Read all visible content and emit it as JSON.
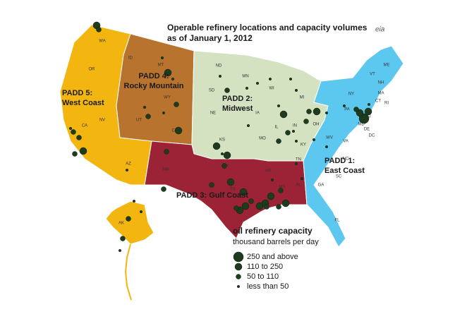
{
  "header": {
    "title": [
      "Operable refinery locations and capacity volumes",
      "as of January 1, 2012"
    ],
    "logo": "eia"
  },
  "regions": [
    {
      "label": [
        "PADD 5:",
        "West Coast"
      ]
    },
    {
      "label": [
        "PADD 4:",
        "Rocky Mountain"
      ]
    },
    {
      "label": [
        "PADD 2:",
        "Midwest"
      ]
    },
    {
      "label": [
        "PADD 3: Gulf Coast"
      ]
    },
    {
      "label": [
        "PADD 1:",
        "East Coast"
      ]
    }
  ],
  "states": [
    "WA",
    "OR",
    "CA",
    "NV",
    "AZ",
    "AK",
    "MT",
    "ID",
    "WY",
    "UT",
    "CO",
    "ND",
    "SD",
    "NE",
    "KS",
    "OK",
    "MN",
    "IA",
    "MO",
    "WI",
    "IL",
    "MI",
    "IN",
    "OH",
    "KY",
    "TN",
    "NM",
    "TX",
    "AR",
    "LA",
    "MS",
    "AL",
    "GA",
    "FL",
    "SC",
    "NC",
    "VA",
    "WV",
    "PA",
    "NY",
    "VT",
    "NH",
    "ME",
    "MA",
    "CT",
    "RI",
    "NJ",
    "DE",
    "MD",
    "DC"
  ],
  "legend": {
    "title": "oil refinery capacity",
    "subtitle": "thousand barrels per day",
    "items": [
      "250 and above",
      "110 to 250",
      "50 to 110",
      "less than 50"
    ]
  }
}
